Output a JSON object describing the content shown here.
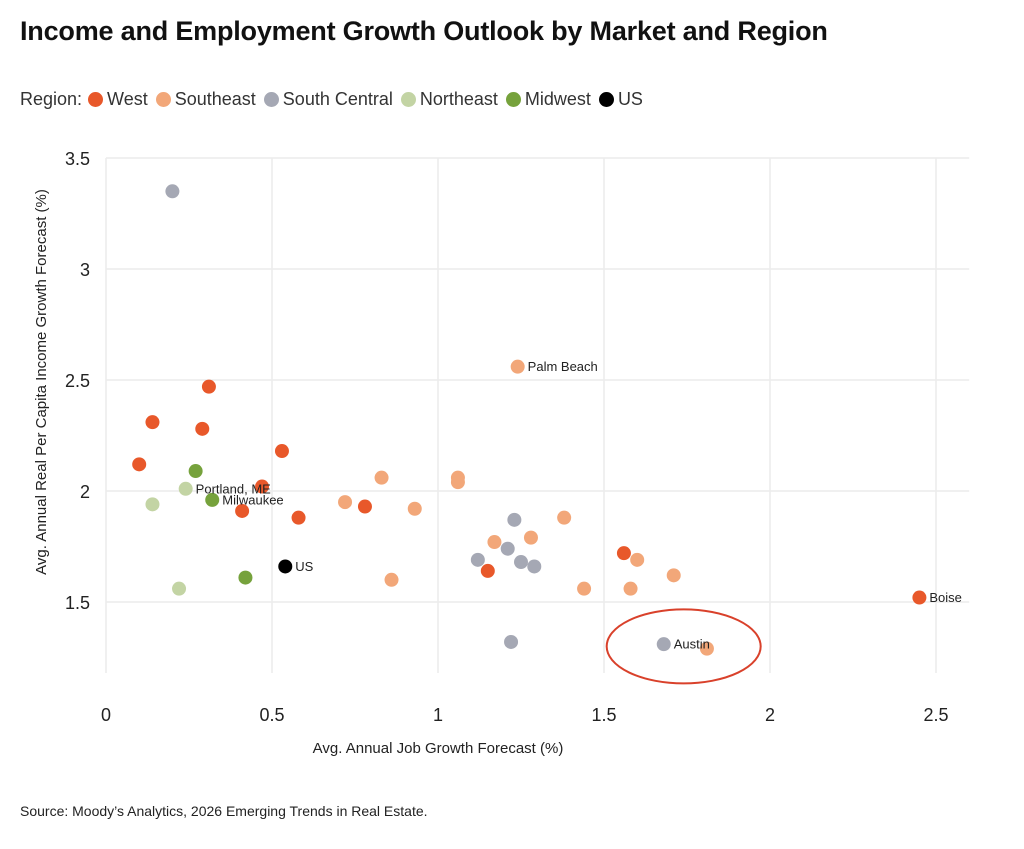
{
  "colors": {
    "West": "#e8582a",
    "Southeast": "#f2a779",
    "South Central": "#a5a8b4",
    "Northeast": "#c3d4a4",
    "Midwest": "#76a23c",
    "US": "#000000",
    "highlight": "#d9412b",
    "grid": "#ececec"
  },
  "legend": {
    "label": "Region:",
    "items": [
      "West",
      "Southeast",
      "South Central",
      "Northeast",
      "Midwest",
      "US"
    ]
  },
  "source": "Source: Moody’s Analytics, 2026 Emerging Trends in Real Estate.",
  "chart_data": {
    "type": "scatter",
    "title": "Income and Employment Growth Outlook by Market and Region",
    "xlabel": "Avg. Annual Job Growth Forecast (%)",
    "ylabel": "Avg. Annual Real Per Capita Income Growth Forecast (%)",
    "xlim": [
      0,
      2.6
    ],
    "ylim": [
      1.18,
      3.5
    ],
    "xticks": [
      "0",
      "0.5",
      "1",
      "1.5",
      "2",
      "2.5"
    ],
    "xtick_values": [
      0,
      0.5,
      1,
      1.5,
      2,
      2.5
    ],
    "yticks": [
      "1.5",
      "2",
      "2.5",
      "3",
      "3.5"
    ],
    "ytick_values": [
      1.5,
      2,
      2.5,
      3,
      3.5
    ],
    "grid": true,
    "legend_position": "top-left",
    "highlight": {
      "label": "Austin",
      "shape": "ellipse",
      "around": [
        1.74,
        1.3
      ]
    },
    "points": [
      {
        "region": "South Central",
        "x": 0.2,
        "y": 3.35,
        "label": ""
      },
      {
        "region": "West",
        "x": 0.31,
        "y": 2.47,
        "label": ""
      },
      {
        "region": "West",
        "x": 0.14,
        "y": 2.31,
        "label": ""
      },
      {
        "region": "West",
        "x": 0.29,
        "y": 2.28,
        "label": ""
      },
      {
        "region": "West",
        "x": 0.53,
        "y": 2.18,
        "label": ""
      },
      {
        "region": "West",
        "x": 0.1,
        "y": 2.12,
        "label": ""
      },
      {
        "region": "Midwest",
        "x": 0.27,
        "y": 2.09,
        "label": ""
      },
      {
        "region": "West",
        "x": 0.47,
        "y": 2.02,
        "label": ""
      },
      {
        "region": "Northeast",
        "x": 0.24,
        "y": 2.01,
        "label": "Portland, ME"
      },
      {
        "region": "Midwest",
        "x": 0.32,
        "y": 1.96,
        "label": "Milwaukee"
      },
      {
        "region": "Northeast",
        "x": 0.14,
        "y": 1.94,
        "label": ""
      },
      {
        "region": "West",
        "x": 0.41,
        "y": 1.91,
        "label": ""
      },
      {
        "region": "West",
        "x": 0.58,
        "y": 1.88,
        "label": ""
      },
      {
        "region": "US",
        "x": 0.54,
        "y": 1.66,
        "label": "US"
      },
      {
        "region": "Midwest",
        "x": 0.42,
        "y": 1.61,
        "label": ""
      },
      {
        "region": "Northeast",
        "x": 0.22,
        "y": 1.56,
        "label": ""
      },
      {
        "region": "Southeast",
        "x": 0.83,
        "y": 2.06,
        "label": ""
      },
      {
        "region": "Southeast",
        "x": 0.72,
        "y": 1.95,
        "label": ""
      },
      {
        "region": "West",
        "x": 0.78,
        "y": 1.93,
        "label": ""
      },
      {
        "region": "Southeast",
        "x": 0.93,
        "y": 1.92,
        "label": ""
      },
      {
        "region": "Southeast",
        "x": 0.86,
        "y": 1.6,
        "label": ""
      },
      {
        "region": "Southeast",
        "x": 1.06,
        "y": 2.06,
        "label": ""
      },
      {
        "region": "Southeast",
        "x": 1.06,
        "y": 2.04,
        "label": ""
      },
      {
        "region": "Southeast",
        "x": 1.24,
        "y": 2.56,
        "label": "Palm Beach"
      },
      {
        "region": "South Central",
        "x": 1.23,
        "y": 1.87,
        "label": ""
      },
      {
        "region": "Southeast",
        "x": 1.38,
        "y": 1.88,
        "label": ""
      },
      {
        "region": "Southeast",
        "x": 1.17,
        "y": 1.77,
        "label": ""
      },
      {
        "region": "Southeast",
        "x": 1.28,
        "y": 1.79,
        "label": ""
      },
      {
        "region": "South Central",
        "x": 1.21,
        "y": 1.74,
        "label": ""
      },
      {
        "region": "South Central",
        "x": 1.12,
        "y": 1.69,
        "label": ""
      },
      {
        "region": "South Central",
        "x": 1.25,
        "y": 1.68,
        "label": ""
      },
      {
        "region": "South Central",
        "x": 1.29,
        "y": 1.66,
        "label": ""
      },
      {
        "region": "West",
        "x": 1.15,
        "y": 1.64,
        "label": ""
      },
      {
        "region": "West",
        "x": 1.56,
        "y": 1.72,
        "label": ""
      },
      {
        "region": "Southeast",
        "x": 1.6,
        "y": 1.69,
        "label": ""
      },
      {
        "region": "Southeast",
        "x": 1.71,
        "y": 1.62,
        "label": ""
      },
      {
        "region": "Southeast",
        "x": 1.44,
        "y": 1.56,
        "label": ""
      },
      {
        "region": "Southeast",
        "x": 1.58,
        "y": 1.56,
        "label": ""
      },
      {
        "region": "South Central",
        "x": 1.22,
        "y": 1.32,
        "label": ""
      },
      {
        "region": "Southeast",
        "x": 1.81,
        "y": 1.29,
        "label": ""
      },
      {
        "region": "South Central",
        "x": 1.68,
        "y": 1.31,
        "label": "Austin"
      },
      {
        "region": "West",
        "x": 2.45,
        "y": 1.52,
        "label": "Boise"
      }
    ]
  }
}
